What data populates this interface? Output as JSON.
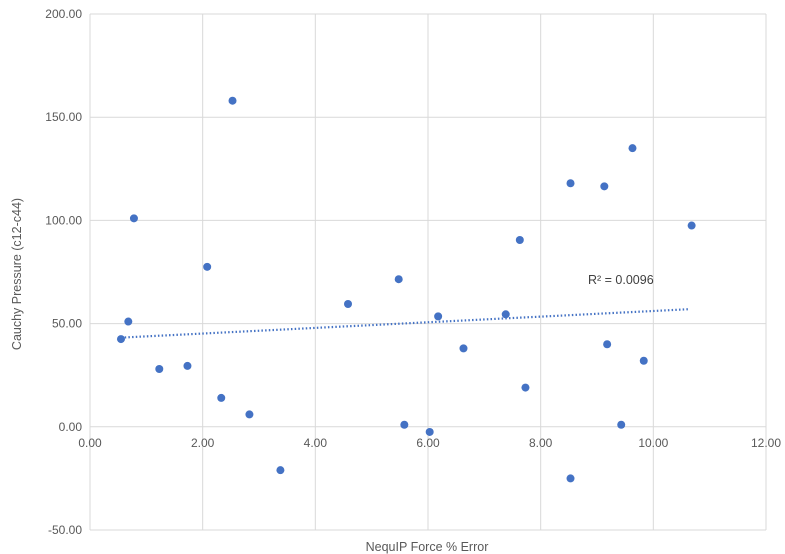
{
  "chart_data": {
    "type": "scatter",
    "title": "",
    "xlabel": "NequIP Force % Error",
    "ylabel": "Cauchy Pressure (c12-c44)",
    "xlim": [
      0,
      12
    ],
    "ylim": [
      -50,
      200
    ],
    "x_ticks": [
      0,
      2,
      4,
      6,
      8,
      10,
      12
    ],
    "y_ticks": [
      -50,
      0,
      50,
      100,
      150,
      200
    ],
    "x_tick_labels": [
      "0.00",
      "2.00",
      "4.00",
      "6.00",
      "8.00",
      "10.00",
      "12.00"
    ],
    "y_tick_labels": [
      "-50.00",
      "0.00",
      "50.00",
      "100.00",
      "150.00",
      "200.00"
    ],
    "grid": true,
    "legend": "none",
    "marker_color": "#4472C4",
    "trendline": {
      "type": "linear",
      "style": "dotted",
      "color": "#4472C4",
      "r2_label": "R² = 0.0096",
      "x_range": [
        0.55,
        10.65
      ],
      "y_range": [
        43.2,
        57.0
      ]
    },
    "points": [
      {
        "x": 0.55,
        "y": 42.5
      },
      {
        "x": 0.68,
        "y": 51.0
      },
      {
        "x": 0.78,
        "y": 101.0
      },
      {
        "x": 1.23,
        "y": 28.0
      },
      {
        "x": 1.73,
        "y": 29.5
      },
      {
        "x": 2.08,
        "y": 77.5
      },
      {
        "x": 2.33,
        "y": 14.0
      },
      {
        "x": 2.53,
        "y": 158.0
      },
      {
        "x": 2.83,
        "y": 6.0
      },
      {
        "x": 3.38,
        "y": -21.0
      },
      {
        "x": 4.58,
        "y": 59.5
      },
      {
        "x": 5.48,
        "y": 71.5
      },
      {
        "x": 5.58,
        "y": 1.0
      },
      {
        "x": 6.03,
        "y": -2.5
      },
      {
        "x": 6.18,
        "y": 53.5
      },
      {
        "x": 6.63,
        "y": 38.0
      },
      {
        "x": 7.38,
        "y": 54.5
      },
      {
        "x": 7.63,
        "y": 90.5
      },
      {
        "x": 7.73,
        "y": 19.0
      },
      {
        "x": 8.53,
        "y": 118.0
      },
      {
        "x": 8.53,
        "y": -25.0
      },
      {
        "x": 9.13,
        "y": 116.5
      },
      {
        "x": 9.18,
        "y": 40.0
      },
      {
        "x": 9.43,
        "y": 1.0
      },
      {
        "x": 9.63,
        "y": 135.0
      },
      {
        "x": 9.83,
        "y": 32.0
      },
      {
        "x": 10.68,
        "y": 97.5
      }
    ]
  }
}
